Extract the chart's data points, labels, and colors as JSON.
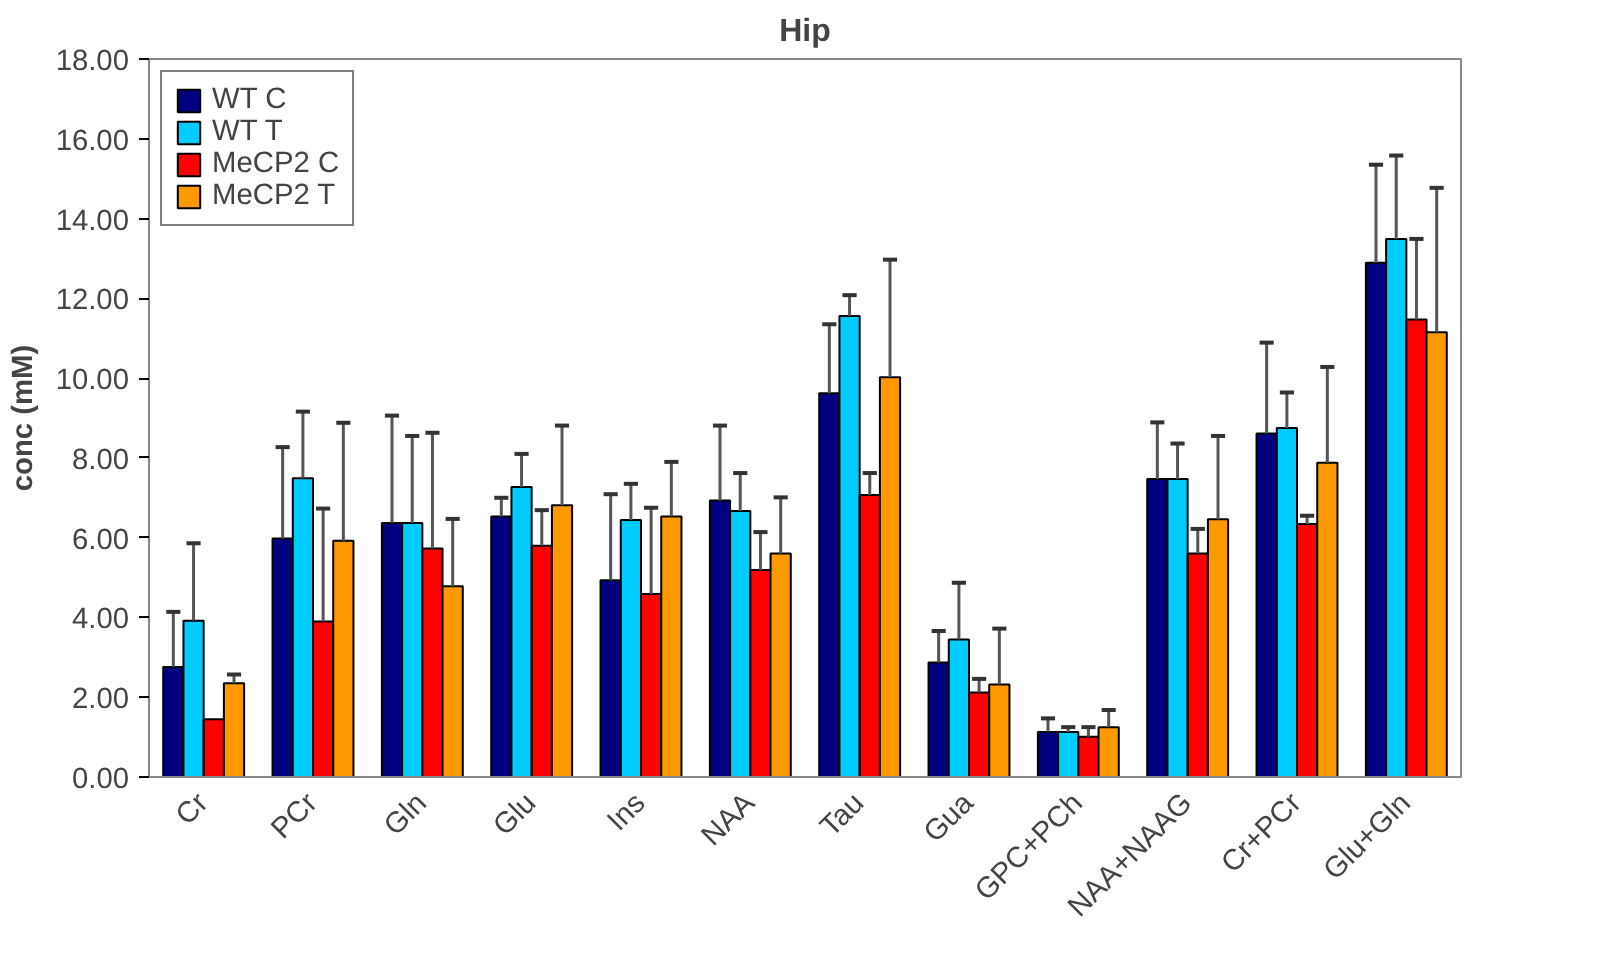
{
  "chart_data": {
    "type": "bar",
    "title": "Hip",
    "ylabel": "conc (mM)",
    "categories": [
      "Cr",
      "PCr",
      "Gln",
      "Glu",
      "Ins",
      "NAA",
      "Tau",
      "Gua",
      "GPC+PCh",
      "NAA+NAAG",
      "Cr+PCr",
      "Glu+Gln"
    ],
    "series": [
      {
        "name": "WT C",
        "color": "#000080",
        "values": [
          2.76,
          5.98,
          6.37,
          6.53,
          4.93,
          6.93,
          9.62,
          2.87,
          1.13,
          7.47,
          8.61,
          12.89
        ],
        "errors": [
          [
            2.76,
            4.14
          ],
          [
            5.98,
            8.27
          ],
          [
            6.37,
            9.06
          ],
          [
            6.53,
            7.0
          ],
          [
            4.93,
            7.09
          ],
          [
            6.93,
            8.81
          ],
          [
            9.62,
            11.35
          ],
          [
            2.87,
            3.66
          ],
          [
            1.13,
            1.47
          ],
          [
            7.47,
            8.89
          ],
          [
            8.61,
            10.89
          ],
          [
            12.89,
            15.35
          ]
        ]
      },
      {
        "name": "WT T",
        "color": "#00ccff",
        "values": [
          3.92,
          7.49,
          6.37,
          7.27,
          6.44,
          6.67,
          11.56,
          3.45,
          1.13,
          7.47,
          8.75,
          13.49
        ],
        "errors": [
          [
            3.92,
            5.86
          ],
          [
            7.49,
            9.16
          ],
          [
            6.37,
            8.55
          ],
          [
            7.27,
            8.1
          ],
          [
            6.44,
            7.35
          ],
          [
            6.67,
            7.62
          ],
          [
            11.56,
            12.08
          ],
          [
            3.45,
            4.87
          ],
          [
            1.13,
            1.25
          ],
          [
            7.47,
            8.36
          ],
          [
            8.75,
            9.64
          ],
          [
            13.49,
            15.58
          ]
        ]
      },
      {
        "name": "MeCP2 C",
        "color": "#ff0000",
        "values": [
          1.45,
          3.9,
          5.73,
          5.8,
          4.59,
          5.19,
          7.07,
          2.12,
          1.01,
          5.6,
          6.34,
          11.47
        ],
        "errors": [
          null,
          [
            3.9,
            6.73
          ],
          [
            5.73,
            8.63
          ],
          [
            5.8,
            6.69
          ],
          [
            4.59,
            6.75
          ],
          [
            5.19,
            6.14
          ],
          [
            7.07,
            7.62
          ],
          [
            2.12,
            2.46
          ],
          [
            1.01,
            1.25
          ],
          [
            5.6,
            6.22
          ],
          [
            6.34,
            6.55
          ],
          [
            11.47,
            13.49
          ]
        ]
      },
      {
        "name": "MeCP2 T",
        "color": "#ff9900",
        "values": [
          2.35,
          5.92,
          4.78,
          6.81,
          6.53,
          5.6,
          10.02,
          2.32,
          1.25,
          6.46,
          7.88,
          11.15
        ],
        "errors": [
          [
            2.35,
            2.57
          ],
          [
            5.92,
            8.88
          ],
          [
            4.78,
            6.47
          ],
          [
            6.81,
            8.81
          ],
          [
            6.53,
            7.9
          ],
          [
            5.6,
            7.01
          ],
          [
            10.02,
            12.97
          ],
          [
            2.32,
            3.72
          ],
          [
            1.25,
            1.68
          ],
          [
            6.46,
            8.55
          ],
          [
            7.88,
            10.28
          ],
          [
            11.15,
            14.77
          ]
        ]
      }
    ],
    "ylim": [
      0,
      18
    ],
    "yticks": [
      {
        "value": 0,
        "label": "0.00"
      },
      {
        "value": 2,
        "label": "2.00"
      },
      {
        "value": 4,
        "label": "4.00"
      },
      {
        "value": 6,
        "label": "6.00"
      },
      {
        "value": 8,
        "label": "8.00"
      },
      {
        "value": 10,
        "label": "10.00"
      },
      {
        "value": 12,
        "label": "12.00"
      },
      {
        "value": 14,
        "label": "14.00"
      },
      {
        "value": 16,
        "label": "16.00"
      },
      {
        "value": 18,
        "label": "18.00"
      }
    ],
    "legend": "top left",
    "grid": false
  }
}
